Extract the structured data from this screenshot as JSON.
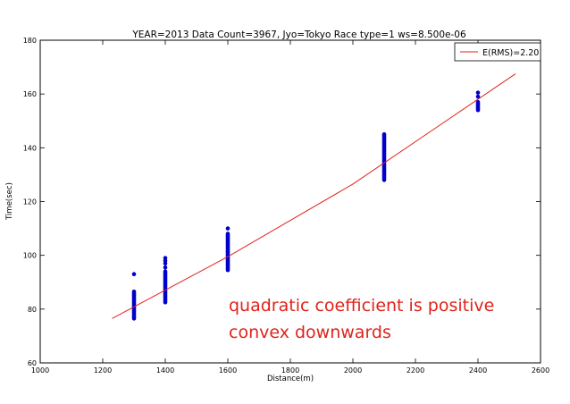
{
  "chart_data": {
    "type": "scatter",
    "title": "YEAR=2013 Data Count=3967, Jyo=Tokyo Race type=1 ws=8.500e-06",
    "xlabel": "Distance(m)",
    "ylabel": "Time(sec)",
    "xlim": [
      1000,
      2600
    ],
    "ylim": [
      60,
      180
    ],
    "xticks": [
      1000,
      1200,
      1400,
      1600,
      1800,
      2000,
      2200,
      2400,
      2600
    ],
    "yticks": [
      60,
      80,
      100,
      120,
      140,
      160,
      180
    ],
    "grid": false,
    "legend_position": "top-right",
    "point_color": "#0000cc",
    "line_color": "#e0231b",
    "point_groups": [
      {
        "x": 1300,
        "y_min": 76.5,
        "y_max": 86.5,
        "outliers": [
          93
        ]
      },
      {
        "x": 1400,
        "y_min": 82.5,
        "y_max": 94,
        "outliers": [
          95.5,
          97,
          98,
          99
        ]
      },
      {
        "x": 1600,
        "y_min": 94.5,
        "y_max": 108,
        "outliers": [
          110
        ]
      },
      {
        "x": 2100,
        "y_min": 128,
        "y_max": 145,
        "outliers": []
      },
      {
        "x": 2400,
        "y_min": 154,
        "y_max": 157,
        "outliers": [
          159,
          160.5
        ]
      }
    ],
    "series": [
      {
        "name": "E(RMS)=2.20",
        "type": "line",
        "x": [
          1230,
          1600,
          2000,
          2520
        ],
        "y": [
          76.5,
          99.5,
          126.5,
          167.5
        ]
      }
    ],
    "annotations": [
      "quadratic coefficient is positive",
      "convex downwards"
    ]
  }
}
